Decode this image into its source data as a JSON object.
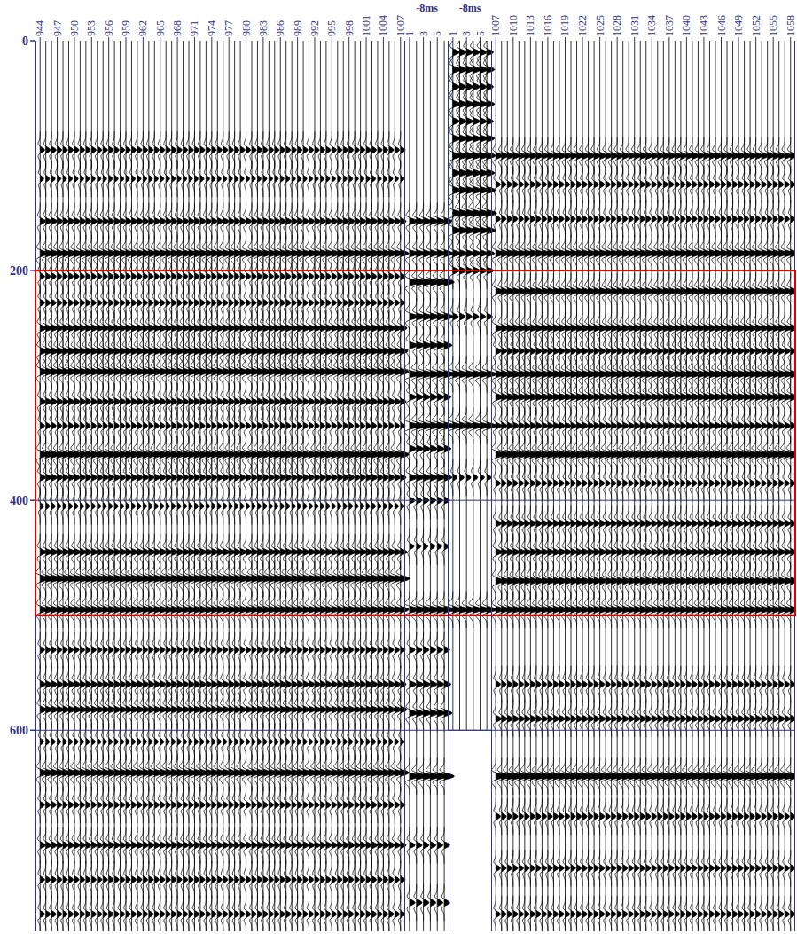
{
  "chart_data": {
    "type": "seismic_section",
    "ylim": [
      0,
      775
    ],
    "yticks": [
      0,
      200,
      400,
      600
    ],
    "grid": true,
    "color": "#000000",
    "highlight": {
      "from": 200,
      "to": 500,
      "color": "#e00000"
    },
    "panels": [
      {
        "xlim": [
          943.5,
          1007.5
        ],
        "xticks": [
          944,
          947,
          950,
          953,
          956,
          959,
          962,
          965,
          968,
          971,
          974,
          977,
          980,
          983,
          986,
          989,
          992,
          995,
          998,
          1001,
          1004,
          1007
        ],
        "events": [
          {
            "time": 95,
            "amplitude": 0.5
          },
          {
            "time": 120,
            "amplitude": 0.4
          },
          {
            "time": 157,
            "amplitude": 0.6
          },
          {
            "time": 185,
            "amplitude": 0.9
          },
          {
            "time": 205,
            "amplitude": 0.5
          },
          {
            "time": 228,
            "amplitude": 0.5
          },
          {
            "time": 250,
            "amplitude": 0.7
          },
          {
            "time": 270,
            "amplitude": 0.8
          },
          {
            "time": 288,
            "amplitude": 0.9
          },
          {
            "time": 314,
            "amplitude": 0.6
          },
          {
            "time": 335,
            "amplitude": 0.5
          },
          {
            "time": 360,
            "amplitude": 0.9
          },
          {
            "time": 380,
            "amplitude": 0.6
          },
          {
            "time": 405,
            "amplitude": 0.4
          },
          {
            "time": 445,
            "amplitude": 0.7
          },
          {
            "time": 468,
            "amplitude": 1.0
          },
          {
            "time": 495,
            "amplitude": 0.9
          },
          {
            "time": 530,
            "amplitude": 0.5
          },
          {
            "time": 560,
            "amplitude": 0.6
          },
          {
            "time": 582,
            "amplitude": 0.7
          },
          {
            "time": 610,
            "amplitude": 0.4
          },
          {
            "time": 637,
            "amplitude": 0.9
          },
          {
            "time": 665,
            "amplitude": 0.5
          },
          {
            "time": 700,
            "amplitude": 0.6
          },
          {
            "time": 730,
            "amplitude": 0.5
          },
          {
            "time": 760,
            "amplitude": 0.5
          }
        ]
      },
      {
        "title": "-8ms",
        "xlim": [
          0.5,
          6.5
        ],
        "xticks": [
          1,
          3,
          5
        ],
        "events": [
          {
            "time": 157,
            "amplitude": 0.7
          },
          {
            "time": 185,
            "amplitude": 0.8
          },
          {
            "time": 210,
            "amplitude": 0.9
          },
          {
            "time": 240,
            "amplitude": 0.8
          },
          {
            "time": 265,
            "amplitude": 0.7
          },
          {
            "time": 290,
            "amplitude": 1.0
          },
          {
            "time": 310,
            "amplitude": 0.6
          },
          {
            "time": 335,
            "amplitude": 1.0
          },
          {
            "time": 355,
            "amplitude": 0.6
          },
          {
            "time": 380,
            "amplitude": 0.7
          },
          {
            "time": 400,
            "amplitude": 0.5
          },
          {
            "time": 440,
            "amplitude": 0.4
          },
          {
            "time": 495,
            "amplitude": 1.0
          },
          {
            "time": 530,
            "amplitude": 0.5
          },
          {
            "time": 560,
            "amplitude": 0.6
          },
          {
            "time": 585,
            "amplitude": 0.7
          },
          {
            "time": 640,
            "amplitude": 0.9
          },
          {
            "time": 700,
            "amplitude": 0.5
          },
          {
            "time": 750,
            "amplitude": 0.5
          }
        ]
      },
      {
        "title": "-8ms",
        "xlim": [
          0.5,
          6.5
        ],
        "xticks": [
          1,
          3,
          5
        ],
        "tmax": 600,
        "events": [
          {
            "time": 10,
            "amplitude": 0.6
          },
          {
            "time": 25,
            "amplitude": 0.7
          },
          {
            "time": 40,
            "amplitude": 0.6
          },
          {
            "time": 55,
            "amplitude": 0.7
          },
          {
            "time": 70,
            "amplitude": 0.6
          },
          {
            "time": 85,
            "amplitude": 0.7
          },
          {
            "time": 100,
            "amplitude": 0.8
          },
          {
            "time": 115,
            "amplitude": 0.7
          },
          {
            "time": 130,
            "amplitude": 0.8
          },
          {
            "time": 150,
            "amplitude": 0.9
          },
          {
            "time": 165,
            "amplitude": 0.8
          },
          {
            "time": 185,
            "amplitude": 0.7
          },
          {
            "time": 200,
            "amplitude": 0.6
          },
          {
            "time": 240,
            "amplitude": 0.5
          },
          {
            "time": 290,
            "amplitude": 0.9
          },
          {
            "time": 335,
            "amplitude": 0.9
          },
          {
            "time": 380,
            "amplitude": 0.4
          },
          {
            "time": 495,
            "amplitude": 0.9
          }
        ]
      },
      {
        "xlim": [
          1006.5,
          1058.5
        ],
        "xticks": [
          1007,
          1010,
          1013,
          1016,
          1019,
          1022,
          1025,
          1028,
          1031,
          1034,
          1037,
          1040,
          1043,
          1046,
          1049,
          1052,
          1055,
          1058
        ],
        "events": [
          {
            "time": 100,
            "amplitude": 0.7
          },
          {
            "time": 125,
            "amplitude": 0.5
          },
          {
            "time": 155,
            "amplitude": 0.5
          },
          {
            "time": 185,
            "amplitude": 0.9
          },
          {
            "time": 218,
            "amplitude": 0.8
          },
          {
            "time": 250,
            "amplitude": 0.8
          },
          {
            "time": 270,
            "amplitude": 0.6
          },
          {
            "time": 290,
            "amplitude": 0.9
          },
          {
            "time": 310,
            "amplitude": 0.8
          },
          {
            "time": 335,
            "amplitude": 0.6
          },
          {
            "time": 360,
            "amplitude": 1.0
          },
          {
            "time": 385,
            "amplitude": 0.5
          },
          {
            "time": 420,
            "amplitude": 0.6
          },
          {
            "time": 445,
            "amplitude": 0.7
          },
          {
            "time": 470,
            "amplitude": 0.8
          },
          {
            "time": 495,
            "amplitude": 0.9
          },
          {
            "time": 560,
            "amplitude": 0.5
          },
          {
            "time": 590,
            "amplitude": 0.6
          },
          {
            "time": 640,
            "amplitude": 1.0
          },
          {
            "time": 675,
            "amplitude": 0.5
          },
          {
            "time": 720,
            "amplitude": 0.5
          },
          {
            "time": 760,
            "amplitude": 0.5
          }
        ]
      }
    ]
  }
}
